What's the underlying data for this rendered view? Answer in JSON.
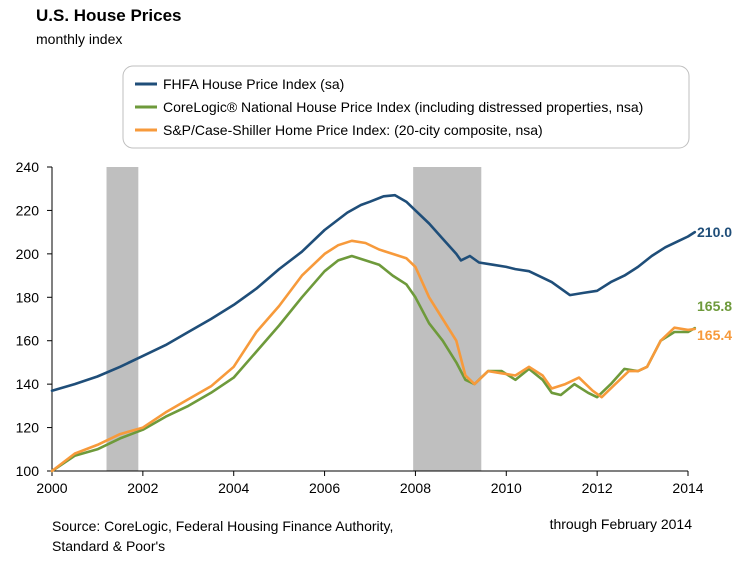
{
  "header": {
    "title": "U.S. House Prices",
    "subtitle": "monthly index"
  },
  "footer": {
    "source_line1": "Source: CoreLogic, Federal Housing Finance Authority,",
    "source_line2": "Standard & Poor's",
    "through": "through February 2014"
  },
  "colors": {
    "fhfa": "#1f4e79",
    "corelogic": "#6e9a3b",
    "caseshiller": "#f79a3b",
    "recession": "#bfbfbf"
  },
  "chart_data": {
    "type": "line",
    "title": "U.S. House Prices",
    "subtitle": "monthly index",
    "xlim": [
      2000,
      2014
    ],
    "ylim": [
      100,
      240
    ],
    "x_ticks": [
      2000,
      2002,
      2004,
      2006,
      2008,
      2010,
      2012,
      2014
    ],
    "y_ticks": [
      100,
      120,
      140,
      160,
      180,
      200,
      220,
      240
    ],
    "grid": false,
    "legend_position": "top",
    "recessions": [
      [
        2001.2,
        2001.9
      ],
      [
        2007.95,
        2009.45
      ]
    ],
    "series": [
      {
        "name": "FHFA House Price Index (sa)",
        "color_key": "fhfa",
        "end_label": "210.0",
        "points": [
          [
            2000.0,
            137
          ],
          [
            2000.5,
            140
          ],
          [
            2001.0,
            143.5
          ],
          [
            2001.5,
            148
          ],
          [
            2002.0,
            153
          ],
          [
            2002.5,
            158
          ],
          [
            2003.0,
            164
          ],
          [
            2003.5,
            170
          ],
          [
            2004.0,
            176.5
          ],
          [
            2004.5,
            184
          ],
          [
            2005.0,
            193
          ],
          [
            2005.5,
            201
          ],
          [
            2006.0,
            211
          ],
          [
            2006.5,
            219
          ],
          [
            2006.8,
            222.5
          ],
          [
            2007.0,
            224
          ],
          [
            2007.3,
            226.5
          ],
          [
            2007.55,
            227
          ],
          [
            2007.8,
            224
          ],
          [
            2008.0,
            220
          ],
          [
            2008.3,
            214
          ],
          [
            2008.6,
            207
          ],
          [
            2008.9,
            200
          ],
          [
            2009.0,
            197
          ],
          [
            2009.2,
            199
          ],
          [
            2009.4,
            196
          ],
          [
            2009.7,
            195
          ],
          [
            2010.0,
            194
          ],
          [
            2010.2,
            193
          ],
          [
            2010.5,
            192
          ],
          [
            2010.8,
            189
          ],
          [
            2011.0,
            187
          ],
          [
            2011.2,
            184
          ],
          [
            2011.4,
            181
          ],
          [
            2011.7,
            182
          ],
          [
            2012.0,
            183
          ],
          [
            2012.3,
            187
          ],
          [
            2012.6,
            190
          ],
          [
            2012.9,
            194
          ],
          [
            2013.2,
            199
          ],
          [
            2013.5,
            203
          ],
          [
            2013.8,
            206
          ],
          [
            2014.0,
            208
          ],
          [
            2014.15,
            210.0
          ]
        ]
      },
      {
        "name": "CoreLogic® National House Price Index (including distressed properties, nsa)",
        "color_key": "corelogic",
        "end_label": "165.8",
        "points": [
          [
            2000.0,
            100
          ],
          [
            2000.5,
            107
          ],
          [
            2001.0,
            110
          ],
          [
            2001.5,
            115
          ],
          [
            2002.0,
            119
          ],
          [
            2002.5,
            125
          ],
          [
            2003.0,
            130
          ],
          [
            2003.5,
            136
          ],
          [
            2004.0,
            143
          ],
          [
            2004.5,
            155
          ],
          [
            2005.0,
            167
          ],
          [
            2005.5,
            180
          ],
          [
            2006.0,
            192
          ],
          [
            2006.3,
            197
          ],
          [
            2006.6,
            199
          ],
          [
            2006.9,
            197
          ],
          [
            2007.2,
            195
          ],
          [
            2007.5,
            190
          ],
          [
            2007.8,
            186
          ],
          [
            2008.0,
            180
          ],
          [
            2008.3,
            168
          ],
          [
            2008.6,
            160
          ],
          [
            2008.9,
            150
          ],
          [
            2009.1,
            142
          ],
          [
            2009.3,
            140
          ],
          [
            2009.6,
            146
          ],
          [
            2009.9,
            146
          ],
          [
            2010.2,
            142
          ],
          [
            2010.5,
            147
          ],
          [
            2010.8,
            142
          ],
          [
            2011.0,
            136
          ],
          [
            2011.2,
            135
          ],
          [
            2011.5,
            140
          ],
          [
            2011.8,
            136
          ],
          [
            2012.0,
            134
          ],
          [
            2012.3,
            140
          ],
          [
            2012.6,
            147
          ],
          [
            2012.9,
            146
          ],
          [
            2013.1,
            148
          ],
          [
            2013.4,
            160
          ],
          [
            2013.7,
            164
          ],
          [
            2014.0,
            164
          ],
          [
            2014.15,
            165.8
          ]
        ]
      },
      {
        "name": "S&P/Case-Shiller Home Price Index: (20-city composite, nsa)",
        "color_key": "caseshiller",
        "end_label": "165.4",
        "points": [
          [
            2000.0,
            100
          ],
          [
            2000.5,
            108
          ],
          [
            2001.0,
            112
          ],
          [
            2001.5,
            117
          ],
          [
            2002.0,
            120
          ],
          [
            2002.5,
            127
          ],
          [
            2003.0,
            133
          ],
          [
            2003.5,
            139
          ],
          [
            2004.0,
            148
          ],
          [
            2004.5,
            164
          ],
          [
            2005.0,
            176
          ],
          [
            2005.5,
            190
          ],
          [
            2006.0,
            200
          ],
          [
            2006.3,
            204
          ],
          [
            2006.6,
            206
          ],
          [
            2006.9,
            205
          ],
          [
            2007.2,
            202
          ],
          [
            2007.5,
            200
          ],
          [
            2007.8,
            198
          ],
          [
            2008.0,
            194
          ],
          [
            2008.3,
            180
          ],
          [
            2008.6,
            170
          ],
          [
            2008.9,
            160
          ],
          [
            2009.1,
            144
          ],
          [
            2009.3,
            140
          ],
          [
            2009.6,
            146
          ],
          [
            2009.9,
            145
          ],
          [
            2010.2,
            144
          ],
          [
            2010.5,
            148
          ],
          [
            2010.8,
            144
          ],
          [
            2011.0,
            138
          ],
          [
            2011.3,
            140
          ],
          [
            2011.6,
            143
          ],
          [
            2011.9,
            137
          ],
          [
            2012.1,
            134
          ],
          [
            2012.4,
            140
          ],
          [
            2012.7,
            146
          ],
          [
            2012.9,
            146
          ],
          [
            2013.1,
            148
          ],
          [
            2013.4,
            160
          ],
          [
            2013.7,
            166
          ],
          [
            2014.0,
            165
          ],
          [
            2014.15,
            165.4
          ]
        ]
      }
    ]
  }
}
